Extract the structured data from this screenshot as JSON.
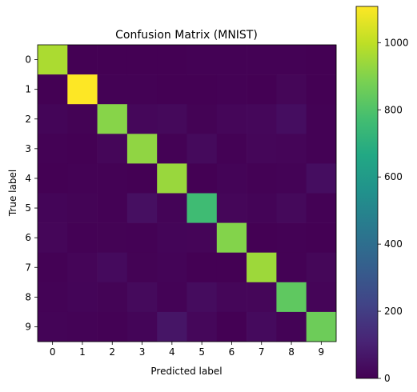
{
  "chart_data": {
    "type": "heatmap",
    "title": "Confusion Matrix (MNIST)",
    "xlabel": "Predicted label",
    "ylabel": "True label",
    "x_categories": [
      "0",
      "1",
      "2",
      "3",
      "4",
      "5",
      "6",
      "7",
      "8",
      "9"
    ],
    "y_categories": [
      "0",
      "1",
      "2",
      "3",
      "4",
      "5",
      "6",
      "7",
      "8",
      "9"
    ],
    "values": [
      [
        968,
        0,
        1,
        1,
        0,
        3,
        3,
        2,
        2,
        0
      ],
      [
        0,
        1108,
        3,
        2,
        1,
        1,
        4,
        1,
        15,
        0
      ],
      [
        12,
        5,
        908,
        20,
        24,
        5,
        16,
        20,
        39,
        3
      ],
      [
        4,
        1,
        16,
        922,
        2,
        28,
        3,
        17,
        14,
        3
      ],
      [
        1,
        3,
        3,
        1,
        937,
        0,
        9,
        3,
        6,
        39
      ],
      [
        12,
        8,
        4,
        45,
        10,
        760,
        17,
        9,
        24,
        3
      ],
      [
        17,
        3,
        5,
        2,
        12,
        14,
        901,
        1,
        3,
        0
      ],
      [
        3,
        14,
        30,
        5,
        10,
        1,
        0,
        945,
        2,
        18
      ],
      [
        7,
        13,
        8,
        28,
        6,
        34,
        16,
        16,
        832,
        14
      ],
      [
        11,
        7,
        2,
        12,
        62,
        19,
        1,
        30,
        6,
        859
      ]
    ],
    "colorscale": "viridis",
    "zlim": [
      0,
      1108
    ],
    "colorbar_ticks": [
      0,
      200,
      400,
      600,
      800,
      1000
    ]
  }
}
